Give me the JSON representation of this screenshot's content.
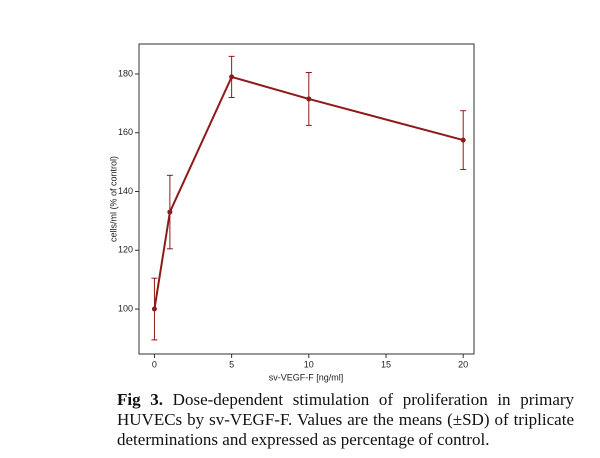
{
  "chart_data": {
    "type": "line",
    "xlabel": "sv-VEGF-F [ng/ml]",
    "ylabel": "cells/ml (% of control)",
    "x": [
      0,
      1,
      5,
      10,
      20
    ],
    "series": [
      {
        "color": "#8e1a1a",
        "values": [
          100,
          133,
          179,
          171.5,
          157.5
        ],
        "errors": [
          10.5,
          12.5,
          7,
          9,
          10
        ]
      }
    ],
    "xlim": [
      -1,
      20.7
    ],
    "xticks": [
      0,
      5,
      10,
      15,
      20
    ],
    "ylim": [
      84.7,
      190.2
    ],
    "yticks": [
      100,
      120,
      140,
      160,
      180
    ],
    "caption": {
      "label": "Fig 3.",
      "text": "Dose-dependent stimulation of proliferation in primary HUVECs by sv-VEGF-F. Values are the means (±SD) of triplicate determinations and expressed as percentage of control."
    }
  }
}
